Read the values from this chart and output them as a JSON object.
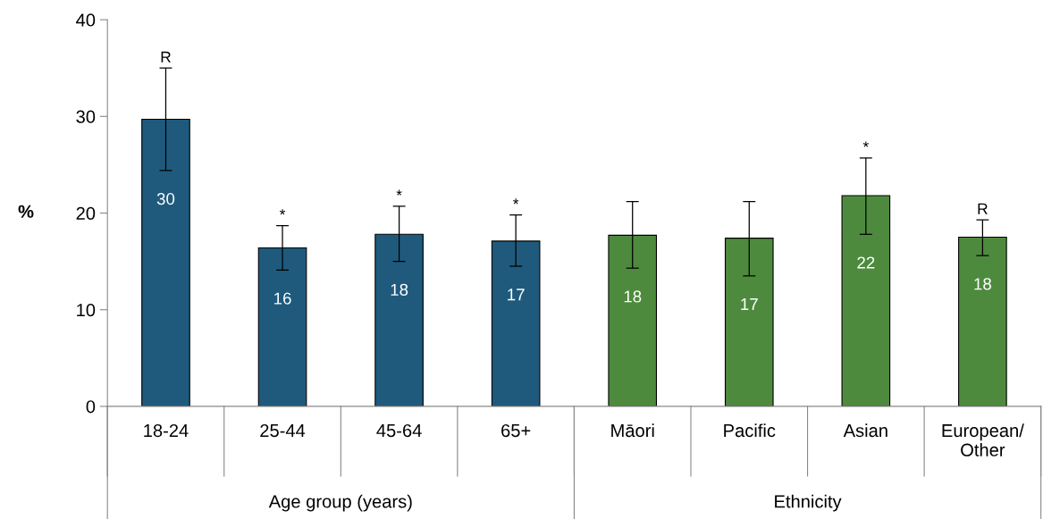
{
  "chart_data": {
    "type": "bar",
    "ylabel": "%",
    "categories": [
      "18-24",
      "25-44",
      "45-64",
      "65+",
      "Māori",
      "Pacific",
      "Asian",
      "European/\nOther"
    ],
    "values": [
      29.7,
      16.4,
      17.8,
      17.1,
      17.7,
      17.4,
      21.8,
      17.5
    ],
    "colors": [
      "#1f5a7d",
      "#1f5a7d",
      "#1f5a7d",
      "#1f5a7d",
      "#4e8a3e",
      "#4e8a3e",
      "#4e8a3e",
      "#4e8a3e"
    ],
    "errors": [
      [
        24.4,
        35.0
      ],
      [
        14.1,
        18.7
      ],
      [
        15.0,
        20.7
      ],
      [
        14.5,
        19.8
      ],
      [
        14.3,
        21.2
      ],
      [
        13.5,
        21.2
      ],
      [
        17.8,
        25.7
      ],
      [
        15.6,
        19.3
      ]
    ],
    "value_labels": [
      "30",
      "16",
      "18",
      "17",
      "18",
      "17",
      "22",
      "18"
    ],
    "ylim": [
      0,
      40
    ],
    "yticks": [
      0,
      10,
      20,
      30,
      40
    ],
    "grid": false,
    "legend": false,
    "annotations": [
      {
        "text": "R",
        "x": "18-24",
        "y": 35.0
      },
      {
        "text": "*",
        "x": "25-44",
        "y": 18.7
      },
      {
        "text": "*",
        "x": "45-64",
        "y": 20.7
      },
      {
        "text": "*",
        "x": "65+",
        "y": 19.8
      },
      {
        "text": "*",
        "x": "Asian",
        "y": 25.7
      },
      {
        "text": "R",
        "x": "European/\nOther",
        "y": 19.3
      },
      "Age group (years)",
      "Ethnicity"
    ]
  }
}
